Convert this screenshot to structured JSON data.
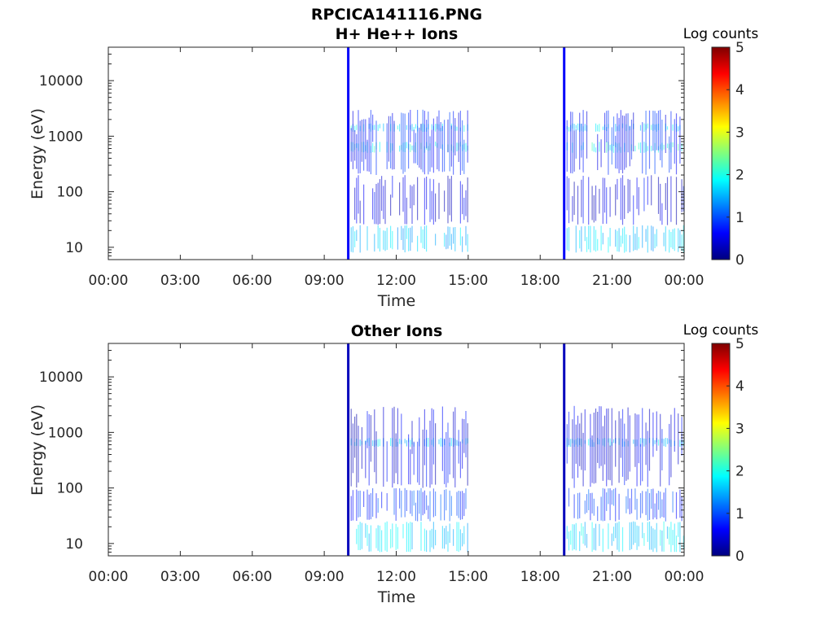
{
  "figure": {
    "title_line1": "RPCICA141116.PNG"
  },
  "colors": {
    "axis": "#262626",
    "background": "#ffffff",
    "colormap": [
      "#00007f",
      "#0000ff",
      "#007fff",
      "#00ffff",
      "#7fff7f",
      "#ffff00",
      "#ff7f00",
      "#ff0000",
      "#7f0000"
    ]
  },
  "chart_data": [
    {
      "type": "heatmap",
      "title": "H+ He++ Ions",
      "xlabel": "Time",
      "ylabel": "Energy (eV)",
      "x_ticks": [
        "00:00",
        "03:00",
        "06:00",
        "09:00",
        "12:00",
        "15:00",
        "18:00",
        "21:00",
        "00:00"
      ],
      "xlim_hours": [
        0,
        24
      ],
      "y_scale": "log",
      "y_ticks": [
        "10",
        "100",
        "1000",
        "10000"
      ],
      "ylim": [
        6,
        40000
      ],
      "colorbar": {
        "label": "Log counts",
        "ticks": [
          "0",
          "1",
          "2",
          "3",
          "4",
          "5"
        ],
        "range": [
          0,
          5
        ]
      },
      "grid": false,
      "data_intervals_hours": [
        [
          10.0,
          15.0
        ],
        [
          19.0,
          24.0
        ]
      ],
      "spikes": [
        {
          "time_hours": 10.0,
          "log_counts": 0.6,
          "energy_range": [
            6,
            40000
          ]
        },
        {
          "time_hours": 19.0,
          "log_counts": 0.6,
          "energy_range": [
            6,
            40000
          ]
        }
      ],
      "bands": [
        {
          "energy_range": [
            1200,
            1700
          ],
          "log_counts": 1.8
        },
        {
          "energy_range": [
            500,
            800
          ],
          "log_counts": 2.0
        },
        {
          "energy_range": [
            8,
            25
          ],
          "log_counts": 1.6
        },
        {
          "energy_range": [
            200,
            3000
          ],
          "log_counts": 0.7
        },
        {
          "energy_range": [
            25,
            200
          ],
          "log_counts": 0.5
        }
      ]
    },
    {
      "type": "heatmap",
      "title": "Other Ions",
      "xlabel": "Time",
      "ylabel": "Energy (eV)",
      "x_ticks": [
        "00:00",
        "03:00",
        "06:00",
        "09:00",
        "12:00",
        "15:00",
        "18:00",
        "21:00",
        "00:00"
      ],
      "xlim_hours": [
        0,
        24
      ],
      "y_scale": "log",
      "y_ticks": [
        "10",
        "100",
        "1000",
        "10000"
      ],
      "ylim": [
        6,
        40000
      ],
      "colorbar": {
        "label": "Log counts",
        "ticks": [
          "0",
          "1",
          "2",
          "3",
          "4",
          "5"
        ],
        "range": [
          0,
          5
        ]
      },
      "grid": false,
      "data_intervals_hours": [
        [
          10.0,
          15.0
        ],
        [
          19.0,
          24.0
        ]
      ],
      "spikes": [
        {
          "time_hours": 10.0,
          "log_counts": 0.3,
          "energy_range": [
            6,
            40000
          ]
        },
        {
          "time_hours": 19.0,
          "log_counts": 0.3,
          "energy_range": [
            6,
            40000
          ]
        }
      ],
      "bands": [
        {
          "energy_range": [
            550,
            800
          ],
          "log_counts": 1.7
        },
        {
          "energy_range": [
            7,
            25
          ],
          "log_counts": 1.7
        },
        {
          "energy_range": [
            25,
            100
          ],
          "log_counts": 0.9
        },
        {
          "energy_range": [
            100,
            3000
          ],
          "log_counts": 0.5
        }
      ]
    }
  ]
}
